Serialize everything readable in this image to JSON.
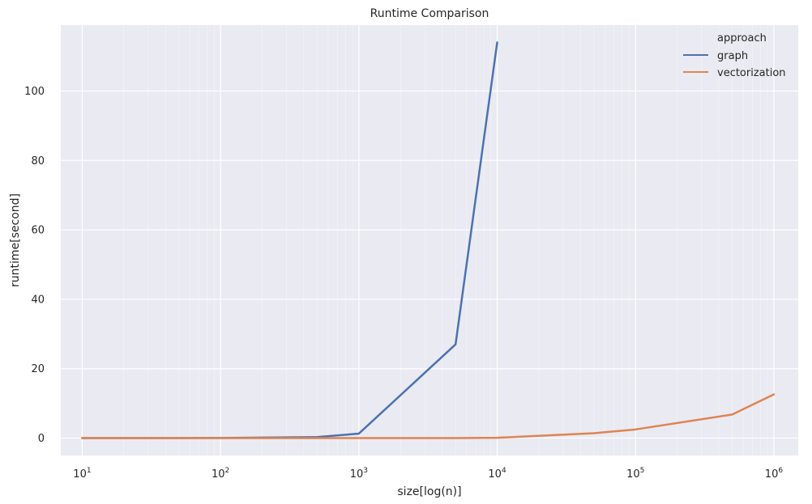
{
  "chart_data": {
    "type": "line",
    "title": "Runtime Comparison",
    "xlabel": "size[log(n)]",
    "ylabel": "runtime[second]",
    "x_scale": "log",
    "xlim": [
      7,
      1500000
    ],
    "ylim": [
      -5,
      119
    ],
    "x_ticks": [
      {
        "value": 10,
        "base": "10",
        "exp": "1"
      },
      {
        "value": 100,
        "base": "10",
        "exp": "2"
      },
      {
        "value": 1000,
        "base": "10",
        "exp": "3"
      },
      {
        "value": 10000,
        "base": "10",
        "exp": "4"
      },
      {
        "value": 100000,
        "base": "10",
        "exp": "5"
      },
      {
        "value": 1000000,
        "base": "10",
        "exp": "6"
      }
    ],
    "y_ticks": [
      0,
      20,
      40,
      60,
      80,
      100
    ],
    "grid": true,
    "background": "#eaeaf2",
    "legend": {
      "title": "approach",
      "placement": "top-right"
    },
    "series": [
      {
        "name": "graph",
        "color": "#4c72b0",
        "x": [
          10,
          50,
          100,
          500,
          1000,
          5000,
          10000
        ],
        "y": [
          0.0,
          0.0,
          0.05,
          0.3,
          1.3,
          27.0,
          114.0
        ]
      },
      {
        "name": "vectorization",
        "color": "#dd8452",
        "x": [
          10,
          50,
          100,
          500,
          1000,
          5000,
          10000,
          50000,
          100000,
          500000,
          1000000
        ],
        "y": [
          0.0,
          0.0,
          0.0,
          0.0,
          0.0,
          0.0,
          0.1,
          1.4,
          2.5,
          6.8,
          12.6
        ]
      }
    ]
  }
}
